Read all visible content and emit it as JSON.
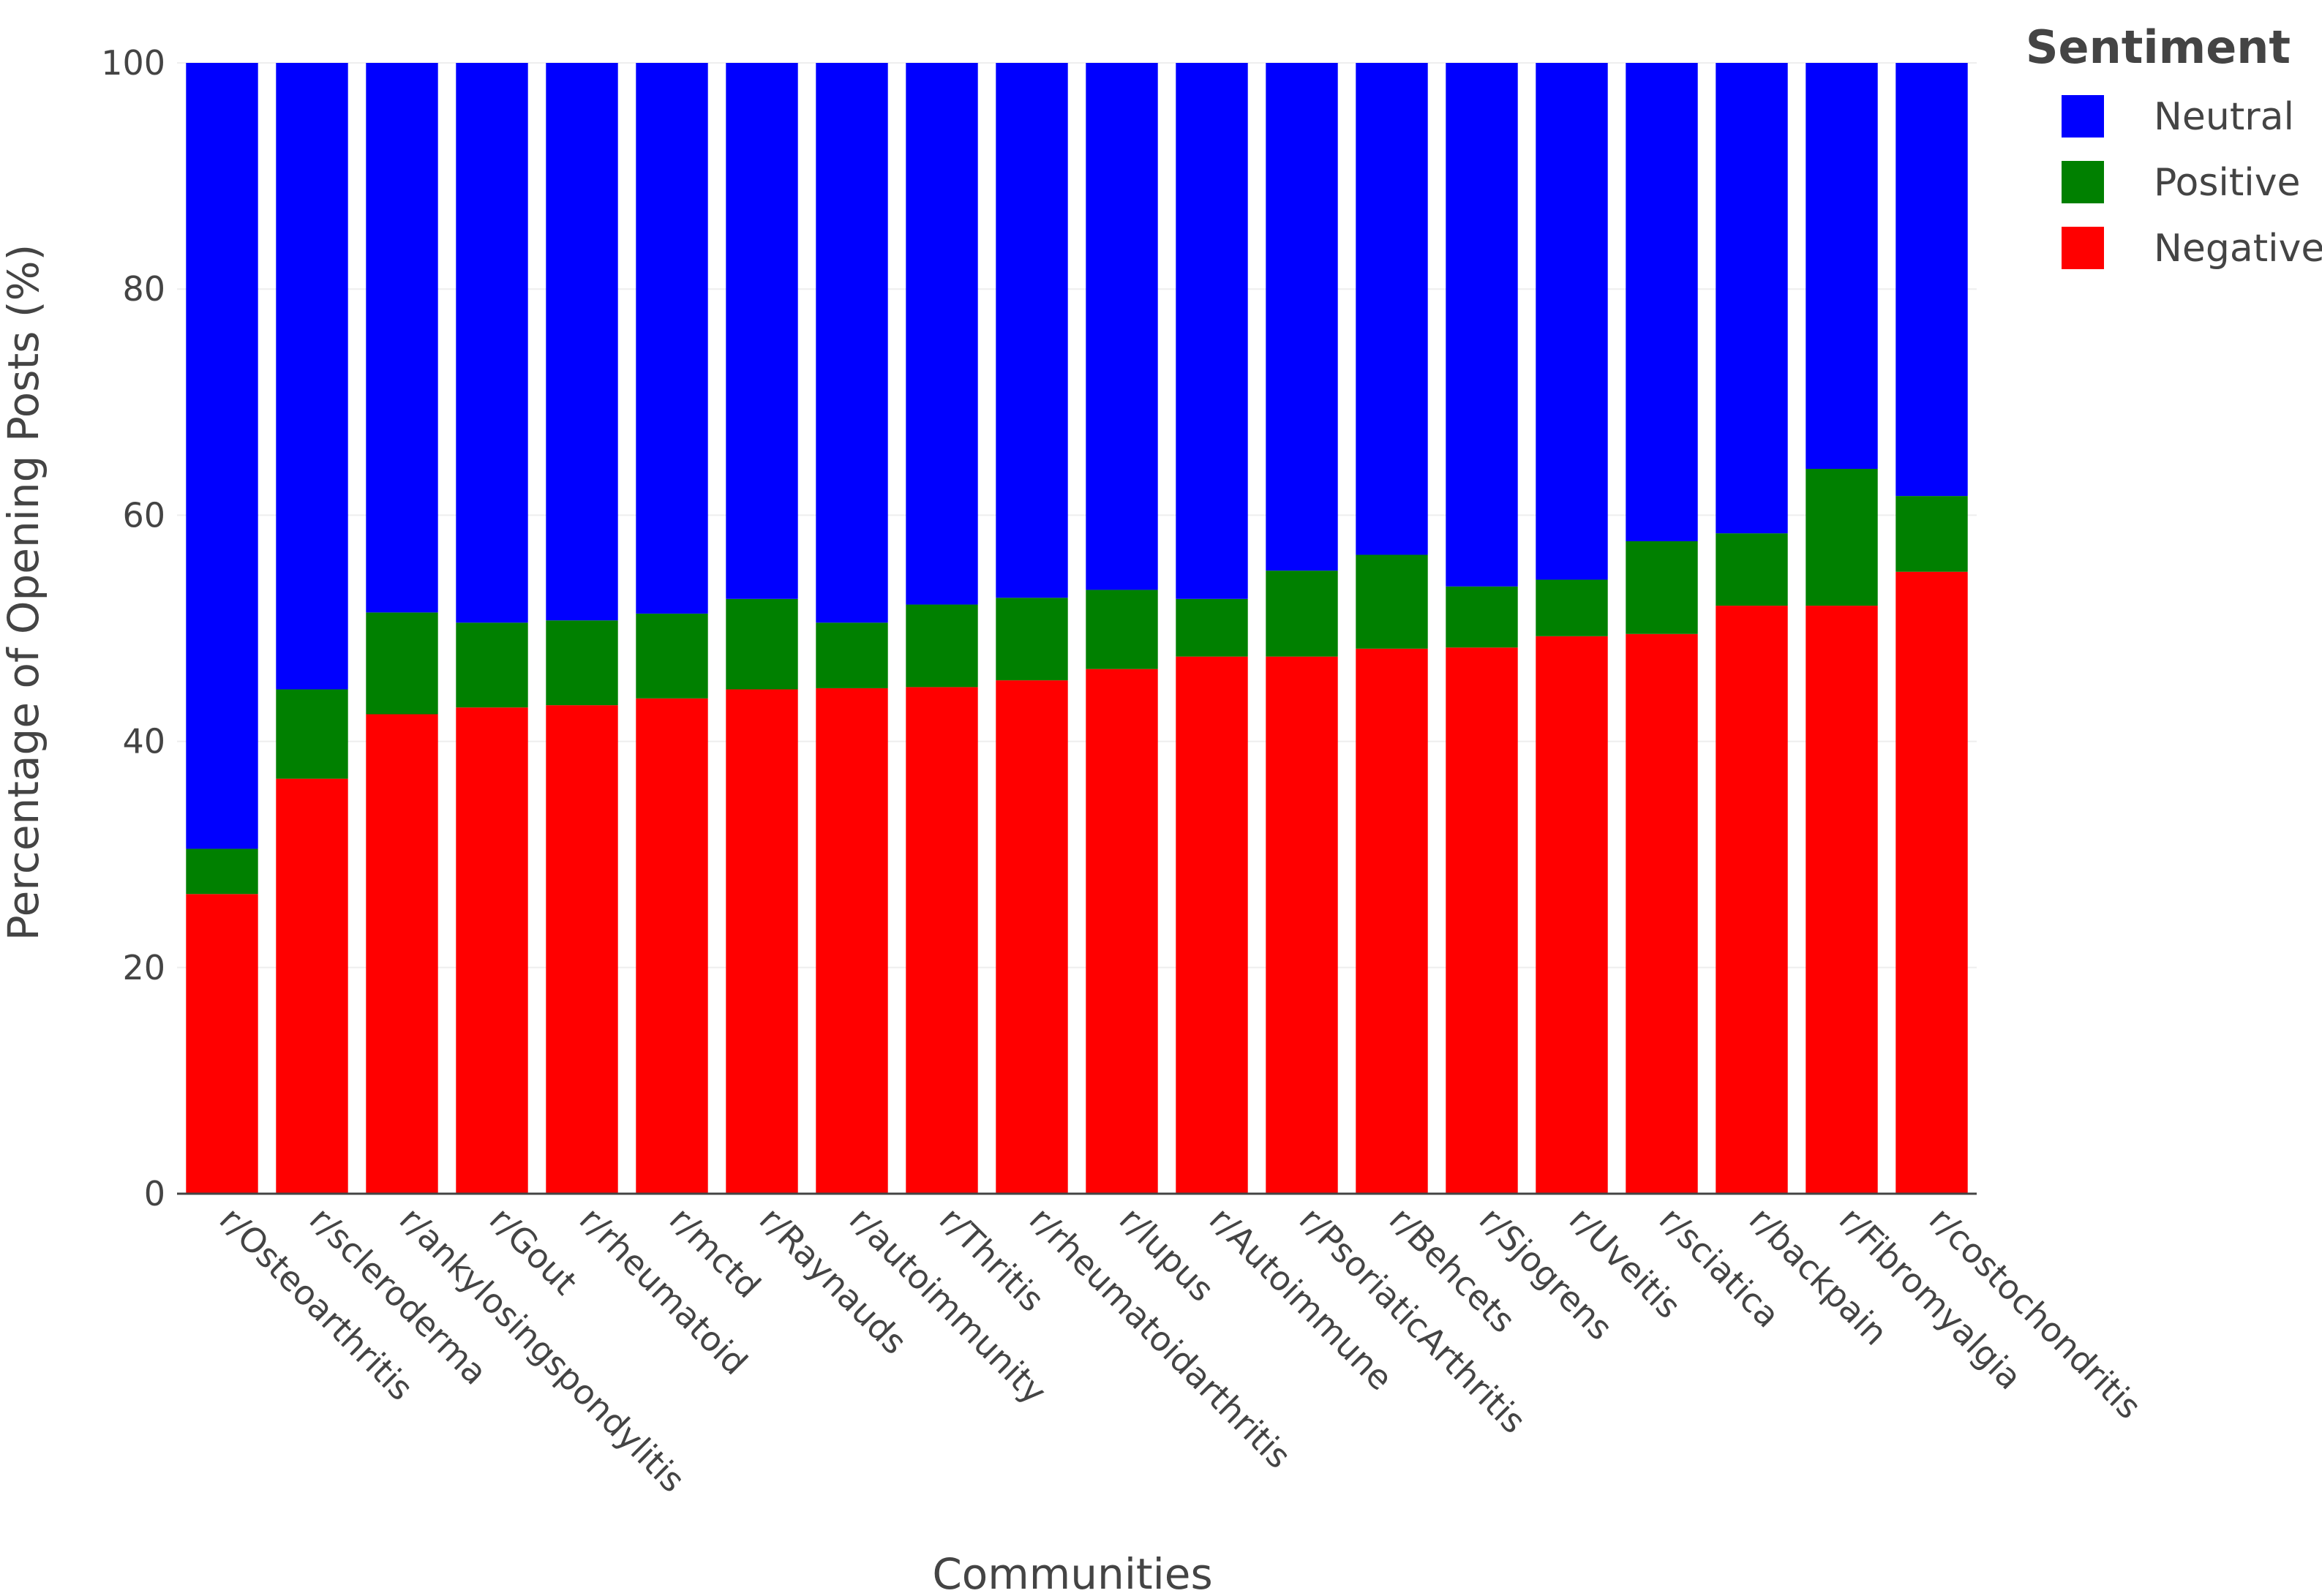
{
  "chart_data": {
    "type": "bar",
    "stacked": true,
    "xlabel": "Communities",
    "ylabel": "Percentage of Opening Posts (%)",
    "ylim": [
      0,
      100
    ],
    "yticks": [
      0,
      20,
      40,
      60,
      80,
      100
    ],
    "grid": true,
    "legend": {
      "title": "Sentiment",
      "position": "top-right"
    },
    "categories": [
      "r/Osteoarthritis",
      "r/scleroderma",
      "r/ankylosingspondylitis",
      "r/Gout",
      "r/rheumatoid",
      "r/mctd",
      "r/Raynauds",
      "r/autoimmunity",
      "r/Thritis",
      "r/rheumatoidarthritis",
      "r/lupus",
      "r/Autoimmune",
      "r/PsoriaticArthritis",
      "r/Behcets",
      "r/Sjogrens",
      "r/Uveitis",
      "r/sciatica",
      "r/backpain",
      "r/Fibromyalgia",
      "r/costochondritis"
    ],
    "series": [
      {
        "name": "Negative",
        "color": "#ff0000",
        "values": [
          26.5,
          36.7,
          42.4,
          43.0,
          43.2,
          43.8,
          44.6,
          44.7,
          44.8,
          45.4,
          46.4,
          47.5,
          47.5,
          48.2,
          48.3,
          49.3,
          49.5,
          52.0,
          52.0,
          55.0
        ]
      },
      {
        "name": "Positive",
        "color": "#008000",
        "values": [
          4.0,
          7.9,
          9.0,
          7.5,
          7.5,
          7.5,
          8.0,
          5.8,
          7.3,
          7.3,
          7.0,
          5.1,
          7.6,
          8.3,
          5.4,
          5.0,
          8.2,
          6.4,
          12.1,
          6.7
        ]
      },
      {
        "name": "Neutral",
        "color": "#0000ff",
        "values": [
          69.5,
          55.4,
          48.6,
          49.5,
          49.3,
          48.7,
          47.4,
          49.5,
          47.9,
          47.3,
          46.6,
          47.4,
          44.9,
          43.5,
          46.3,
          45.7,
          42.3,
          41.6,
          35.9,
          38.3
        ]
      }
    ],
    "legend_order": [
      "Neutral",
      "Positive",
      "Negative"
    ]
  }
}
